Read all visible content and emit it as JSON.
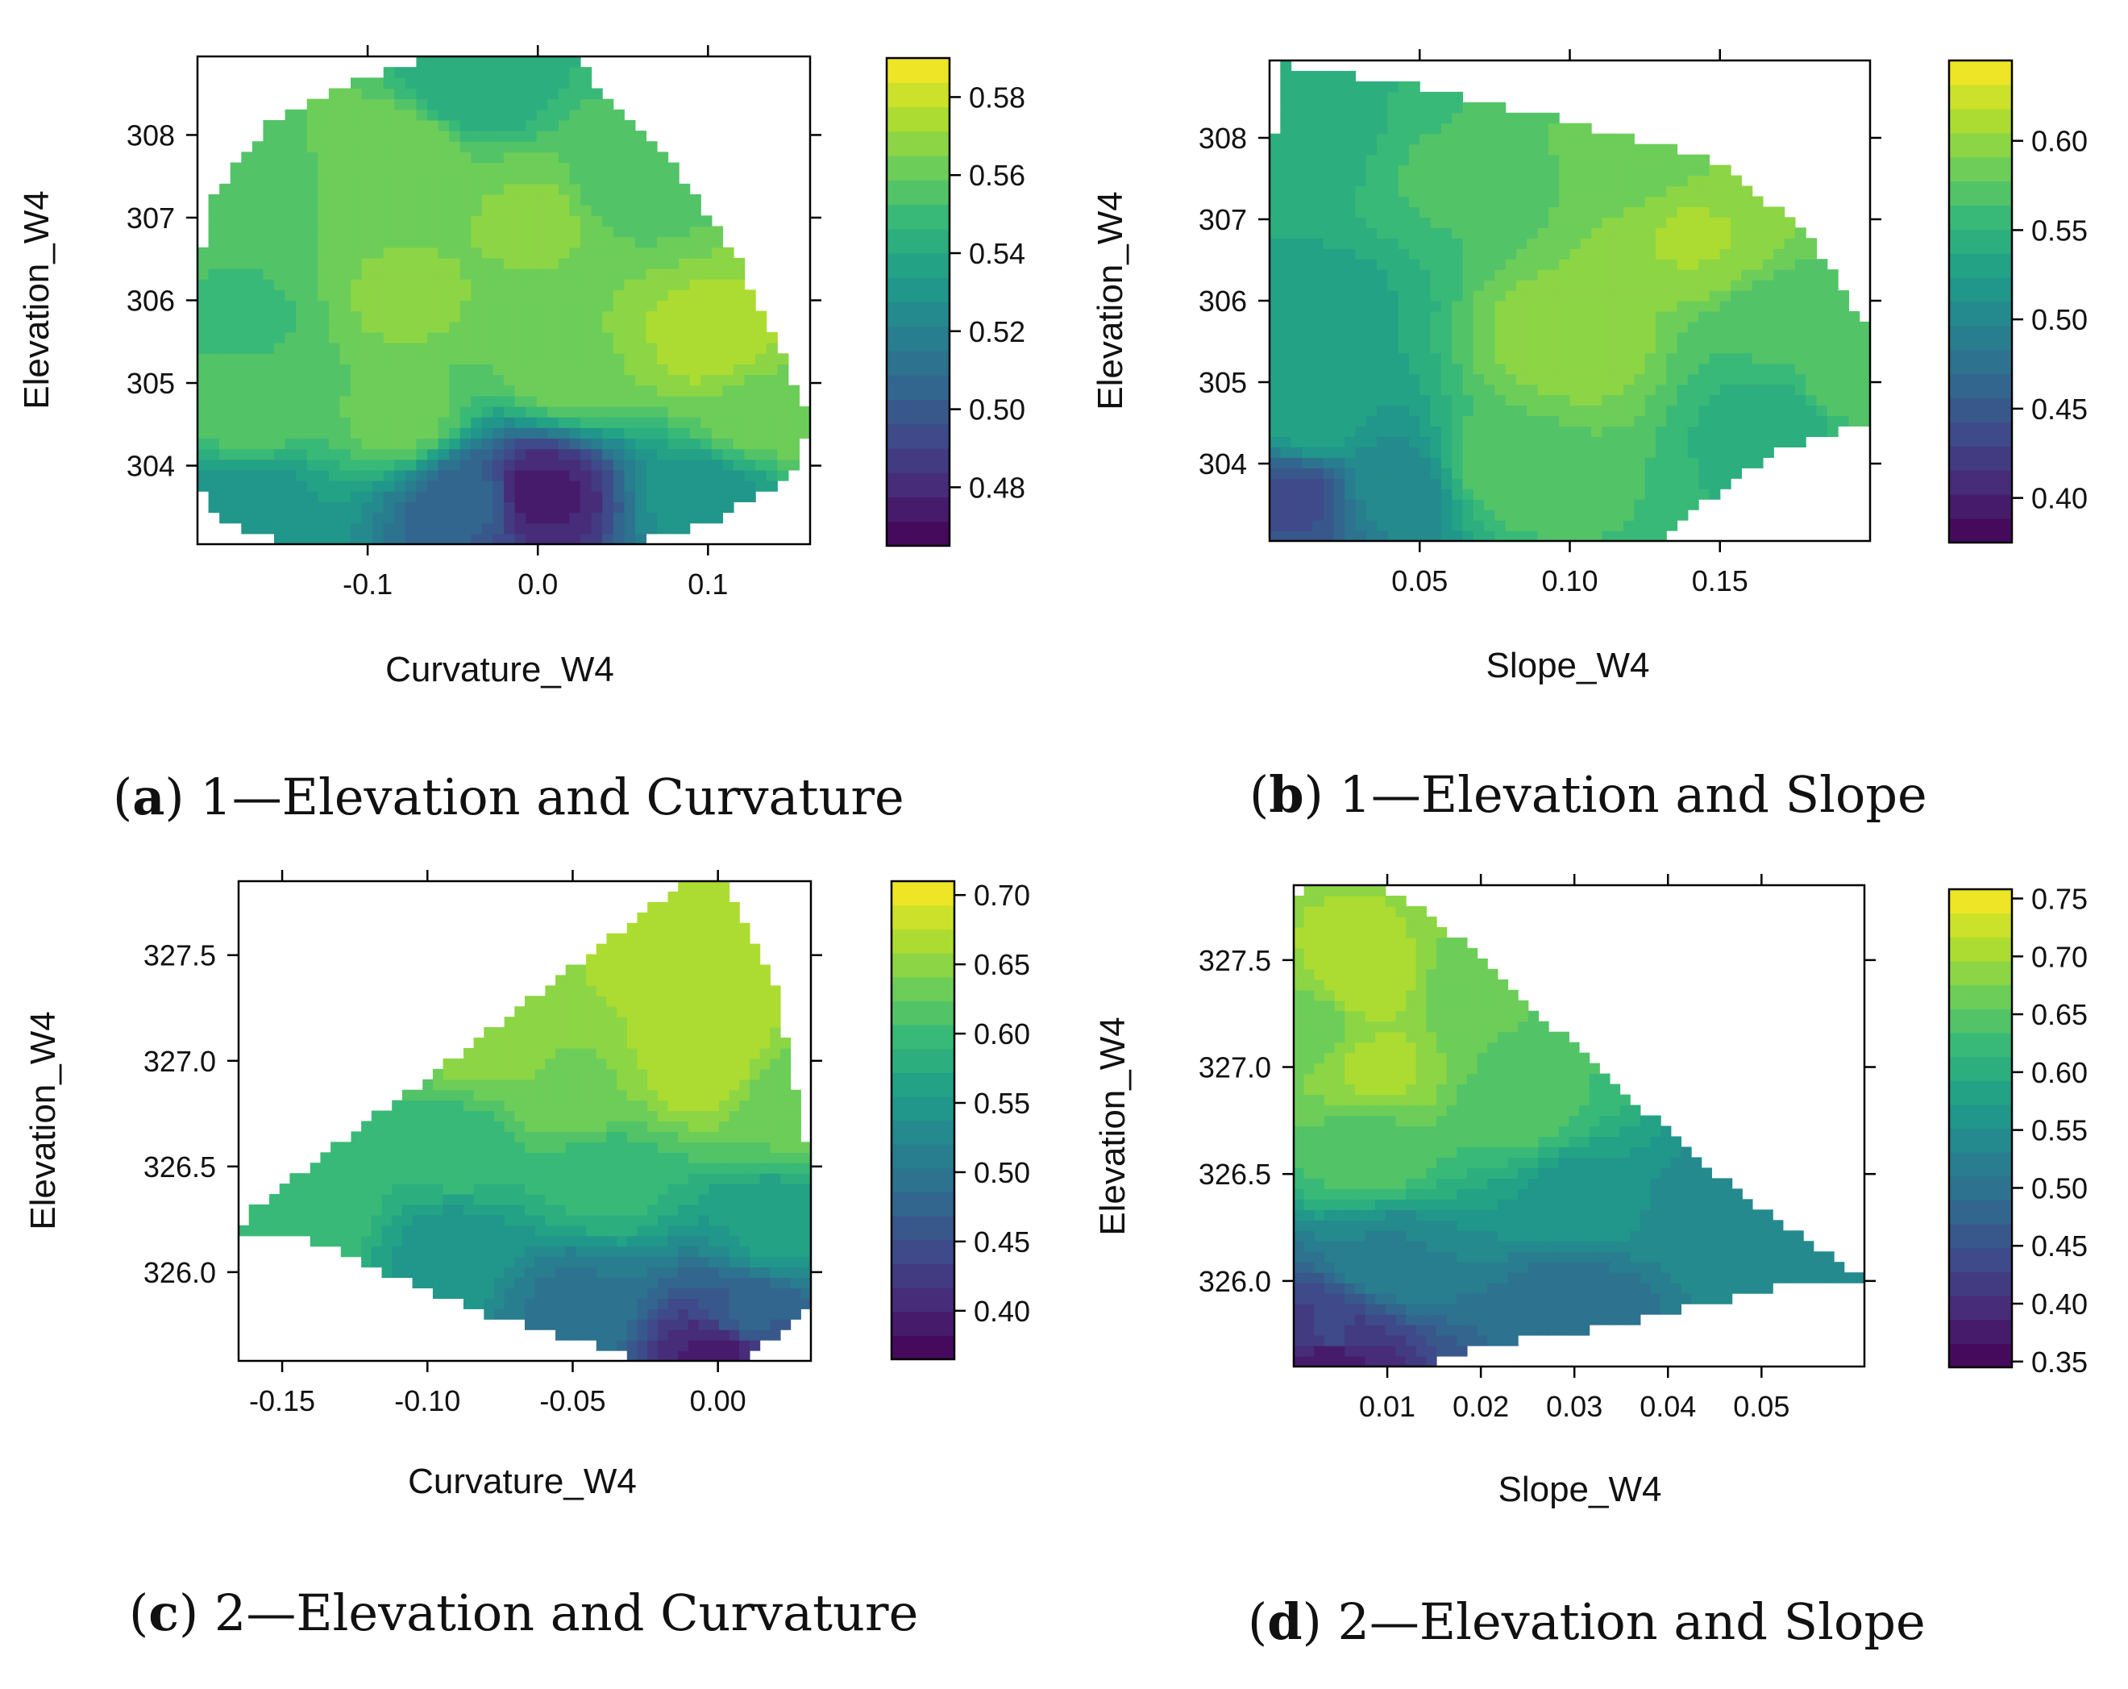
{
  "chart_data": [
    {
      "type": "heatmap",
      "caption": {
        "letter": "a",
        "text": "1—Elevation and Curvature"
      },
      "xlabel": "Curvature_W4",
      "ylabel": "Elevation_W4",
      "xlim": [
        -0.2,
        0.16
      ],
      "ylim": [
        303.05,
        308.95
      ],
      "xticks": [
        -0.1,
        0.0,
        0.1
      ],
      "xtick_labels": [
        "-0.1",
        "0.0",
        "0.1"
      ],
      "yticks": [
        304,
        305,
        306,
        307,
        308
      ],
      "ytick_labels": [
        "304",
        "305",
        "306",
        "307",
        "308"
      ],
      "colorbar": {
        "min": 0.465,
        "max": 0.59,
        "ticks": [
          0.48,
          0.5,
          0.52,
          0.54,
          0.56,
          0.58
        ],
        "tick_labels": [
          "0.48",
          "0.50",
          "0.52",
          "0.54",
          "0.56",
          "0.58"
        ]
      },
      "boundary": [
        [
          -0.2,
          303.85
        ],
        [
          -0.2,
          306.4
        ],
        [
          -0.19,
          307.3
        ],
        [
          -0.16,
          308.1
        ],
        [
          -0.1,
          308.7
        ],
        [
          -0.06,
          308.95
        ],
        [
          0.02,
          308.95
        ],
        [
          0.04,
          308.5
        ],
        [
          0.08,
          307.6
        ],
        [
          0.12,
          306.4
        ],
        [
          0.16,
          304.6
        ],
        [
          0.15,
          303.9
        ],
        [
          0.1,
          303.3
        ],
        [
          0.05,
          303.05
        ],
        [
          -0.15,
          303.05
        ],
        [
          -0.19,
          303.4
        ]
      ],
      "anchors": [
        {
          "x": -0.17,
          "y": 307.5,
          "value": 0.557
        },
        {
          "x": -0.17,
          "y": 305.8,
          "value": 0.552
        },
        {
          "x": -0.17,
          "y": 304.6,
          "value": 0.556
        },
        {
          "x": -0.08,
          "y": 307.8,
          "value": 0.565
        },
        {
          "x": -0.08,
          "y": 306.0,
          "value": 0.566
        },
        {
          "x": -0.08,
          "y": 304.6,
          "value": 0.561
        },
        {
          "x": -0.04,
          "y": 308.6,
          "value": 0.54
        },
        {
          "x": 0.0,
          "y": 307.0,
          "value": 0.566
        },
        {
          "x": 0.02,
          "y": 305.2,
          "value": 0.565
        },
        {
          "x": 0.1,
          "y": 305.5,
          "value": 0.574
        },
        {
          "x": 0.05,
          "y": 307.4,
          "value": 0.556
        },
        {
          "x": 0.13,
          "y": 304.6,
          "value": 0.562
        },
        {
          "x": -0.17,
          "y": 303.6,
          "value": 0.53
        },
        {
          "x": -0.04,
          "y": 303.6,
          "value": 0.505
        },
        {
          "x": 0.0,
          "y": 303.65,
          "value": 0.475
        },
        {
          "x": 0.1,
          "y": 303.6,
          "value": 0.53
        }
      ]
    },
    {
      "type": "heatmap",
      "caption": {
        "letter": "b",
        "text": "1—Elevation and Slope"
      },
      "xlabel": "Slope_W4",
      "ylabel": "Elevation_W4",
      "xlim": [
        0.0,
        0.2
      ],
      "ylim": [
        303.05,
        308.95
      ],
      "xticks": [
        0.05,
        0.1,
        0.15
      ],
      "xtick_labels": [
        "0.05",
        "0.10",
        "0.15"
      ],
      "yticks": [
        304,
        305,
        306,
        307,
        308
      ],
      "ytick_labels": [
        "304",
        "305",
        "306",
        "307",
        "308"
      ],
      "colorbar": {
        "min": 0.375,
        "max": 0.645,
        "ticks": [
          0.4,
          0.45,
          0.5,
          0.55,
          0.6
        ],
        "tick_labels": [
          "0.40",
          "0.45",
          "0.50",
          "0.55",
          "0.60"
        ]
      },
      "boundary": [
        [
          0.0,
          303.05
        ],
        [
          0.0,
          306.8
        ],
        [
          0.003,
          308.9
        ],
        [
          0.04,
          308.7
        ],
        [
          0.1,
          308.2
        ],
        [
          0.15,
          307.7
        ],
        [
          0.18,
          306.8
        ],
        [
          0.2,
          305.6
        ],
        [
          0.2,
          304.5
        ],
        [
          0.17,
          304.2
        ],
        [
          0.13,
          303.1
        ],
        [
          0.07,
          303.05
        ]
      ],
      "anchors": [
        {
          "x": 0.01,
          "y": 308.0,
          "value": 0.54
        },
        {
          "x": 0.02,
          "y": 306.0,
          "value": 0.535
        },
        {
          "x": 0.015,
          "y": 304.5,
          "value": 0.53
        },
        {
          "x": 0.01,
          "y": 303.6,
          "value": 0.44
        },
        {
          "x": 0.04,
          "y": 303.7,
          "value": 0.5
        },
        {
          "x": 0.06,
          "y": 307.5,
          "value": 0.565
        },
        {
          "x": 0.1,
          "y": 305.5,
          "value": 0.6
        },
        {
          "x": 0.14,
          "y": 306.8,
          "value": 0.605
        },
        {
          "x": 0.12,
          "y": 307.8,
          "value": 0.58
        },
        {
          "x": 0.08,
          "y": 304.0,
          "value": 0.575
        },
        {
          "x": 0.17,
          "y": 305.5,
          "value": 0.565
        },
        {
          "x": 0.17,
          "y": 304.6,
          "value": 0.54
        },
        {
          "x": 0.19,
          "y": 305.0,
          "value": 0.57
        }
      ]
    },
    {
      "type": "heatmap",
      "caption": {
        "letter": "c",
        "text": "2—Elevation and Curvature"
      },
      "xlabel": "Curvature_W4",
      "ylabel": "Elevation_W4",
      "xlim": [
        -0.165,
        0.032
      ],
      "ylim": [
        325.58,
        327.85
      ],
      "xticks": [
        -0.15,
        -0.1,
        -0.05,
        0.0
      ],
      "xtick_labels": [
        "-0.15",
        "-0.10",
        "-0.05",
        "0.00"
      ],
      "yticks": [
        326.0,
        326.5,
        327.0,
        327.5
      ],
      "ytick_labels": [
        "326.0",
        "326.5",
        "327.0",
        "327.5"
      ],
      "colorbar": {
        "min": 0.365,
        "max": 0.71,
        "ticks": [
          0.4,
          0.45,
          0.5,
          0.55,
          0.6,
          0.65,
          0.7
        ],
        "tick_labels": [
          "0.40",
          "0.45",
          "0.50",
          "0.55",
          "0.60",
          "0.65",
          "0.70"
        ]
      },
      "boundary": [
        [
          -0.165,
          326.2
        ],
        [
          -0.16,
          326.3
        ],
        [
          -0.03,
          327.65
        ],
        [
          -0.012,
          327.85
        ],
        [
          0.003,
          327.85
        ],
        [
          0.01,
          327.65
        ],
        [
          0.02,
          327.35
        ],
        [
          0.025,
          327.0
        ],
        [
          0.032,
          326.5
        ],
        [
          0.032,
          325.85
        ],
        [
          0.02,
          325.7
        ],
        [
          0.01,
          325.6
        ],
        [
          -0.025,
          325.58
        ],
        [
          -0.08,
          325.8
        ],
        [
          -0.14,
          326.15
        ]
      ],
      "anchors": [
        {
          "x": -0.08,
          "y": 327.1,
          "value": 0.65
        },
        {
          "x": -0.01,
          "y": 327.5,
          "value": 0.675
        },
        {
          "x": -0.005,
          "y": 327.0,
          "value": 0.675
        },
        {
          "x": -0.14,
          "y": 326.3,
          "value": 0.6
        },
        {
          "x": -0.09,
          "y": 326.6,
          "value": 0.6
        },
        {
          "x": -0.05,
          "y": 326.85,
          "value": 0.64
        },
        {
          "x": -0.04,
          "y": 326.45,
          "value": 0.595
        },
        {
          "x": -0.09,
          "y": 326.1,
          "value": 0.545
        },
        {
          "x": -0.05,
          "y": 325.85,
          "value": 0.5
        },
        {
          "x": 0.0,
          "y": 325.62,
          "value": 0.395
        },
        {
          "x": 0.01,
          "y": 325.8,
          "value": 0.47
        },
        {
          "x": 0.02,
          "y": 326.2,
          "value": 0.56
        },
        {
          "x": 0.025,
          "y": 326.8,
          "value": 0.63
        }
      ]
    },
    {
      "type": "heatmap",
      "caption": {
        "letter": "d",
        "text": "2—Elevation and Slope"
      },
      "xlabel": "Slope_W4",
      "ylabel": "Elevation_W4",
      "xlim": [
        0.0,
        0.061
      ],
      "ylim": [
        325.6,
        327.85
      ],
      "xticks": [
        0.01,
        0.02,
        0.03,
        0.04,
        0.05
      ],
      "xtick_labels": [
        "0.01",
        "0.02",
        "0.03",
        "0.04",
        "0.05"
      ],
      "yticks": [
        326.0,
        326.5,
        327.0,
        327.5
      ],
      "ytick_labels": [
        "326.0",
        "326.5",
        "327.0",
        "327.5"
      ],
      "colorbar": {
        "min": 0.345,
        "max": 0.758,
        "ticks": [
          0.35,
          0.4,
          0.45,
          0.5,
          0.55,
          0.6,
          0.65,
          0.7,
          0.75
        ],
        "tick_labels": [
          "0.35",
          "0.40",
          "0.45",
          "0.50",
          "0.55",
          "0.60",
          "0.65",
          "0.70",
          "0.75"
        ]
      },
      "boundary": [
        [
          0.0,
          325.6
        ],
        [
          0.0,
          327.75
        ],
        [
          0.002,
          327.85
        ],
        [
          0.009,
          327.85
        ],
        [
          0.015,
          327.7
        ],
        [
          0.03,
          327.1
        ],
        [
          0.045,
          326.5
        ],
        [
          0.061,
          326.0
        ],
        [
          0.055,
          326.0
        ],
        [
          0.04,
          325.85
        ],
        [
          0.03,
          325.75
        ],
        [
          0.02,
          325.7
        ],
        [
          0.013,
          325.6
        ]
      ],
      "anchors": [
        {
          "x": 0.007,
          "y": 327.4,
          "value": 0.71
        },
        {
          "x": 0.009,
          "y": 327.0,
          "value": 0.7
        },
        {
          "x": 0.002,
          "y": 327.2,
          "value": 0.665
        },
        {
          "x": 0.02,
          "y": 327.3,
          "value": 0.655
        },
        {
          "x": 0.025,
          "y": 326.8,
          "value": 0.64
        },
        {
          "x": 0.008,
          "y": 326.6,
          "value": 0.645
        },
        {
          "x": 0.03,
          "y": 326.4,
          "value": 0.565
        },
        {
          "x": 0.045,
          "y": 326.3,
          "value": 0.54
        },
        {
          "x": 0.055,
          "y": 326.05,
          "value": 0.54
        },
        {
          "x": 0.01,
          "y": 326.1,
          "value": 0.53
        },
        {
          "x": 0.03,
          "y": 325.85,
          "value": 0.49
        },
        {
          "x": 0.004,
          "y": 325.75,
          "value": 0.43
        },
        {
          "x": 0.004,
          "y": 325.63,
          "value": 0.37
        }
      ]
    }
  ]
}
